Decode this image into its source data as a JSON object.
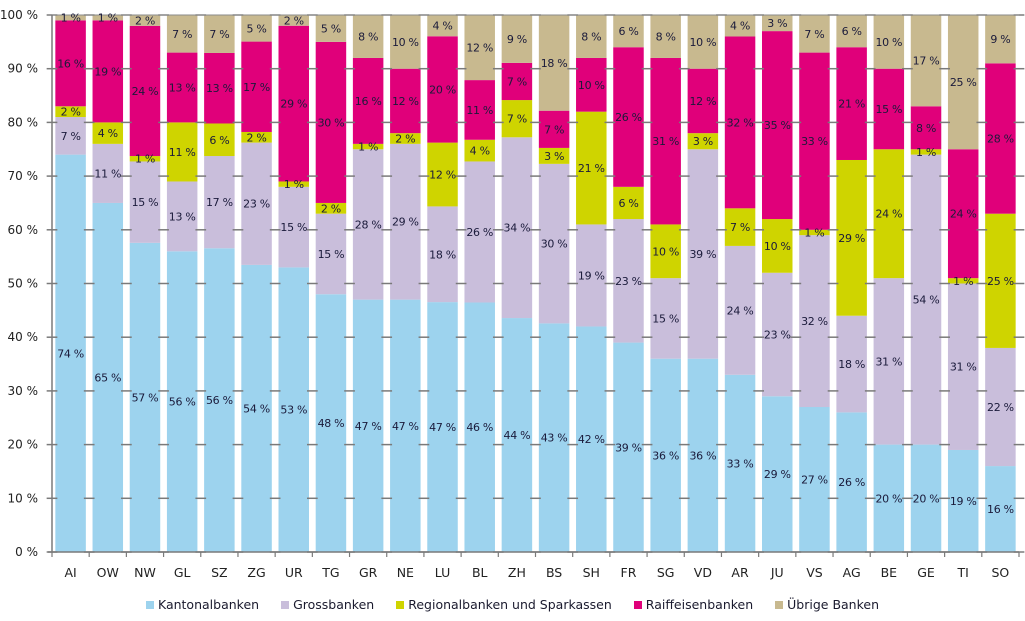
{
  "chart_data": {
    "type": "bar",
    "stacked": true,
    "title": "",
    "xlabel": "",
    "ylabel": "",
    "ylim": [
      0,
      100
    ],
    "yticks": [
      "0 %",
      "10 %",
      "20 %",
      "30 %",
      "40 %",
      "50 %",
      "60 %",
      "70 %",
      "80 %",
      "90 %",
      "100 %"
    ],
    "grid": false,
    "legend_position": "bottom",
    "categories": [
      "AI",
      "OW",
      "NW",
      "GL",
      "SZ",
      "ZG",
      "UR",
      "TG",
      "GR",
      "NE",
      "LU",
      "BL",
      "ZH",
      "BS",
      "SH",
      "FR",
      "SG",
      "VD",
      "AR",
      "JU",
      "VS",
      "AG",
      "BE",
      "GE",
      "TI",
      "SO"
    ],
    "series": [
      {
        "name": "Kantonalbanken",
        "color": "#9dd3ee",
        "values": [
          74,
          65,
          57,
          56,
          56,
          54,
          53,
          48,
          47,
          47,
          47,
          46,
          44,
          43,
          42,
          39,
          36,
          36,
          33,
          29,
          27,
          26,
          20,
          20,
          19,
          16
        ]
      },
      {
        "name": "Grossbanken",
        "color": "#c9bedb",
        "values": [
          7,
          11,
          15,
          13,
          17,
          23,
          15,
          15,
          28,
          29,
          18,
          26,
          34,
          30,
          19,
          23,
          15,
          39,
          24,
          23,
          32,
          18,
          31,
          54,
          31,
          22
        ]
      },
      {
        "name": "Regionalbanken und Sparkassen",
        "color": "#cfd400",
        "values": [
          2,
          4,
          1,
          11,
          6,
          2,
          1,
          2,
          1,
          2,
          12,
          4,
          7,
          3,
          21,
          6,
          10,
          3,
          7,
          10,
          1,
          29,
          24,
          1,
          1,
          25
        ]
      },
      {
        "name": "Raiffeisenbanken",
        "color": "#e0007a",
        "values": [
          16,
          19,
          24,
          13,
          13,
          17,
          29,
          30,
          16,
          12,
          20,
          11,
          7,
          7,
          10,
          26,
          31,
          12,
          32,
          35,
          33,
          21,
          15,
          8,
          24,
          28
        ]
      },
      {
        "name": "Übrige Banken",
        "color": "#c8b98f",
        "values": [
          1,
          1,
          2,
          7,
          7,
          5,
          2,
          5,
          8,
          10,
          4,
          12,
          9,
          18,
          8,
          6,
          8,
          10,
          4,
          3,
          7,
          6,
          10,
          17,
          25,
          9
        ]
      }
    ],
    "value_suffix": " %"
  }
}
